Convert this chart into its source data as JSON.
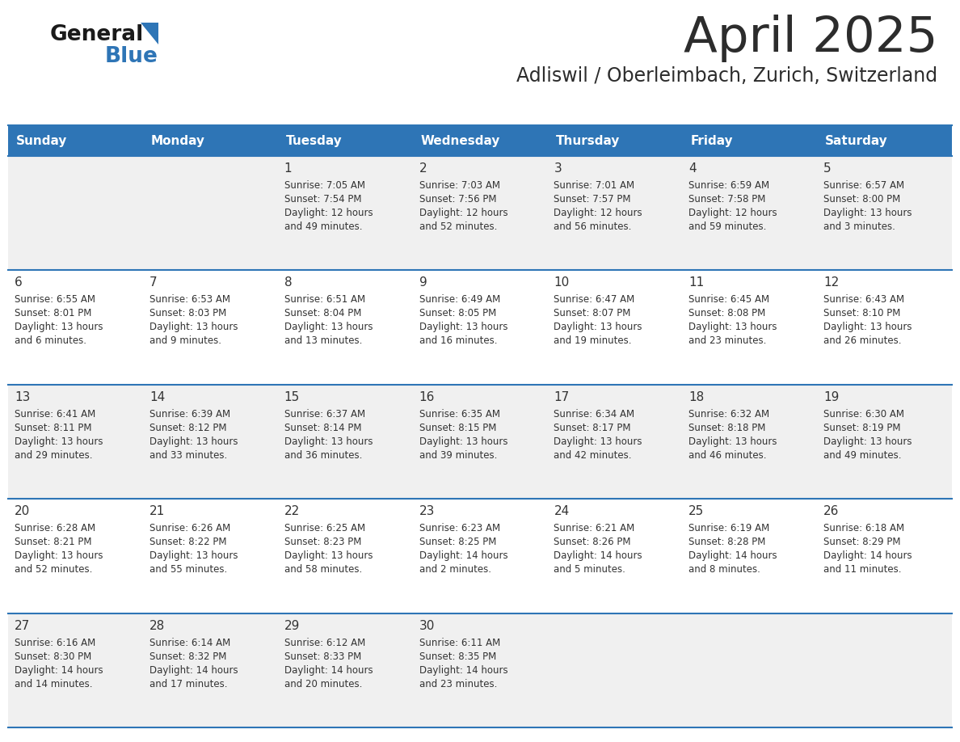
{
  "title": "April 2025",
  "subtitle": "Adliswil / Oberleimbach, Zurich, Switzerland",
  "header_bg_color": "#2E75B6",
  "header_text_color": "#FFFFFF",
  "day_names": [
    "Sunday",
    "Monday",
    "Tuesday",
    "Wednesday",
    "Thursday",
    "Friday",
    "Saturday"
  ],
  "cell_bg_even": "#F0F0F0",
  "cell_bg_odd": "#FFFFFF",
  "divider_color": "#2E75B6",
  "text_color": "#333333",
  "title_color": "#2C2C2C",
  "subtitle_color": "#2C2C2C",
  "logo_general_color": "#1A1A1A",
  "logo_blue_color": "#2E75B6",
  "calendar_data": [
    [
      null,
      null,
      {
        "day": 1,
        "sunrise": "7:05 AM",
        "sunset": "7:54 PM",
        "daylight": "12 hours and 49 minutes."
      },
      {
        "day": 2,
        "sunrise": "7:03 AM",
        "sunset": "7:56 PM",
        "daylight": "12 hours and 52 minutes."
      },
      {
        "day": 3,
        "sunrise": "7:01 AM",
        "sunset": "7:57 PM",
        "daylight": "12 hours and 56 minutes."
      },
      {
        "day": 4,
        "sunrise": "6:59 AM",
        "sunset": "7:58 PM",
        "daylight": "12 hours and 59 minutes."
      },
      {
        "day": 5,
        "sunrise": "6:57 AM",
        "sunset": "8:00 PM",
        "daylight": "13 hours and 3 minutes."
      }
    ],
    [
      {
        "day": 6,
        "sunrise": "6:55 AM",
        "sunset": "8:01 PM",
        "daylight": "13 hours and 6 minutes."
      },
      {
        "day": 7,
        "sunrise": "6:53 AM",
        "sunset": "8:03 PM",
        "daylight": "13 hours and 9 minutes."
      },
      {
        "day": 8,
        "sunrise": "6:51 AM",
        "sunset": "8:04 PM",
        "daylight": "13 hours and 13 minutes."
      },
      {
        "day": 9,
        "sunrise": "6:49 AM",
        "sunset": "8:05 PM",
        "daylight": "13 hours and 16 minutes."
      },
      {
        "day": 10,
        "sunrise": "6:47 AM",
        "sunset": "8:07 PM",
        "daylight": "13 hours and 19 minutes."
      },
      {
        "day": 11,
        "sunrise": "6:45 AM",
        "sunset": "8:08 PM",
        "daylight": "13 hours and 23 minutes."
      },
      {
        "day": 12,
        "sunrise": "6:43 AM",
        "sunset": "8:10 PM",
        "daylight": "13 hours and 26 minutes."
      }
    ],
    [
      {
        "day": 13,
        "sunrise": "6:41 AM",
        "sunset": "8:11 PM",
        "daylight": "13 hours and 29 minutes."
      },
      {
        "day": 14,
        "sunrise": "6:39 AM",
        "sunset": "8:12 PM",
        "daylight": "13 hours and 33 minutes."
      },
      {
        "day": 15,
        "sunrise": "6:37 AM",
        "sunset": "8:14 PM",
        "daylight": "13 hours and 36 minutes."
      },
      {
        "day": 16,
        "sunrise": "6:35 AM",
        "sunset": "8:15 PM",
        "daylight": "13 hours and 39 minutes."
      },
      {
        "day": 17,
        "sunrise": "6:34 AM",
        "sunset": "8:17 PM",
        "daylight": "13 hours and 42 minutes."
      },
      {
        "day": 18,
        "sunrise": "6:32 AM",
        "sunset": "8:18 PM",
        "daylight": "13 hours and 46 minutes."
      },
      {
        "day": 19,
        "sunrise": "6:30 AM",
        "sunset": "8:19 PM",
        "daylight": "13 hours and 49 minutes."
      }
    ],
    [
      {
        "day": 20,
        "sunrise": "6:28 AM",
        "sunset": "8:21 PM",
        "daylight": "13 hours and 52 minutes."
      },
      {
        "day": 21,
        "sunrise": "6:26 AM",
        "sunset": "8:22 PM",
        "daylight": "13 hours and 55 minutes."
      },
      {
        "day": 22,
        "sunrise": "6:25 AM",
        "sunset": "8:23 PM",
        "daylight": "13 hours and 58 minutes."
      },
      {
        "day": 23,
        "sunrise": "6:23 AM",
        "sunset": "8:25 PM",
        "daylight": "14 hours and 2 minutes."
      },
      {
        "day": 24,
        "sunrise": "6:21 AM",
        "sunset": "8:26 PM",
        "daylight": "14 hours and 5 minutes."
      },
      {
        "day": 25,
        "sunrise": "6:19 AM",
        "sunset": "8:28 PM",
        "daylight": "14 hours and 8 minutes."
      },
      {
        "day": 26,
        "sunrise": "6:18 AM",
        "sunset": "8:29 PM",
        "daylight": "14 hours and 11 minutes."
      }
    ],
    [
      {
        "day": 27,
        "sunrise": "6:16 AM",
        "sunset": "8:30 PM",
        "daylight": "14 hours and 14 minutes."
      },
      {
        "day": 28,
        "sunrise": "6:14 AM",
        "sunset": "8:32 PM",
        "daylight": "14 hours and 17 minutes."
      },
      {
        "day": 29,
        "sunrise": "6:12 AM",
        "sunset": "8:33 PM",
        "daylight": "14 hours and 20 minutes."
      },
      {
        "day": 30,
        "sunrise": "6:11 AM",
        "sunset": "8:35 PM",
        "daylight": "14 hours and 23 minutes."
      },
      null,
      null,
      null
    ]
  ]
}
